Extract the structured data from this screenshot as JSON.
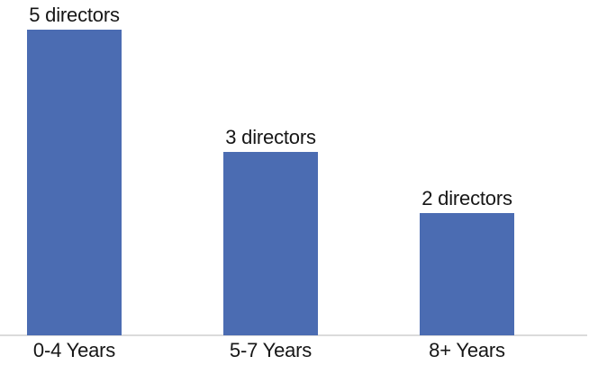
{
  "chart_data": {
    "type": "bar",
    "title": "",
    "xlabel": "",
    "ylabel": "",
    "categories": [
      "0-4 Years",
      "5-7 Years",
      "8+ Years"
    ],
    "values": [
      5,
      3,
      2
    ],
    "value_labels": [
      "5 directors",
      "3 directors",
      "2 directors"
    ],
    "unit": "directors",
    "ylim": [
      0,
      5
    ],
    "grid": false,
    "legend_position": "none",
    "colors": {
      "bar": "#4B6CB2",
      "axis_line": "#DBDBDB",
      "label_text": "#161616",
      "background": "#FFFFFF"
    }
  }
}
